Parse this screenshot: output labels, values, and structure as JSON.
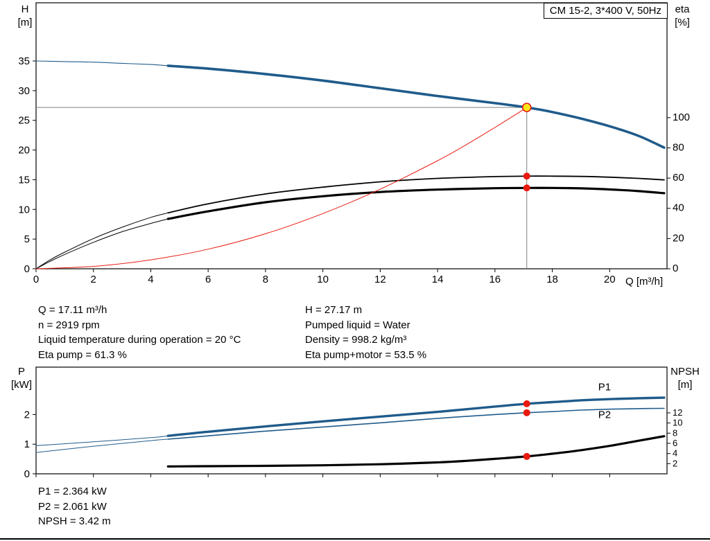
{
  "title_box": "CM 15-2, 3*400 V, 50Hz",
  "axis_titles": {
    "top_left_1": "H",
    "top_left_2": "[m]",
    "top_right_1": "eta",
    "top_right_2": "[%]",
    "bottom_left_1": "P",
    "bottom_left_2": "[kW]",
    "bottom_right_1": "NPSH",
    "bottom_right_2": "[m]"
  },
  "info_panel": {
    "left": [
      "Q = 17.11 m³/h",
      "n = 2919 rpm",
      "Liquid temperature during operation = 20 °C",
      "Eta pump = 61.3 %"
    ],
    "right": [
      "H = 27.17 m",
      "Pumped liquid = Water",
      "Density = 998.2 kg/m³",
      "Eta pump+motor = 53.5 %"
    ]
  },
  "footer_panel": [
    "P1 = 2.364 kW",
    "P2 = 2.061 kW",
    "NPSH = 3.42 m"
  ],
  "colors": {
    "blue": "#1f5b8b",
    "black": "#000000",
    "red": "#e8190f",
    "gray": "#7f7f7f",
    "yellow": "#ffe619"
  },
  "chart_data": [
    {
      "type": "line",
      "title": "CM 15-2, 3*400 V, 50Hz",
      "xlabel": "Q [m³/h]",
      "ylabel_left": "H [m]",
      "ylabel_right": "eta [%]",
      "xlim": [
        0,
        22
      ],
      "ylim_left": [
        0,
        44.8
      ],
      "ylim_right": [
        0,
        176
      ],
      "grid": false,
      "legend": false,
      "x_ticks": [
        0,
        2,
        4,
        6,
        8,
        10,
        12,
        14,
        16,
        18,
        20
      ],
      "y_ticks_left": [
        0,
        5,
        10,
        15,
        20,
        25,
        30,
        35
      ],
      "y_ticks_right": [
        0,
        20,
        40,
        60,
        80,
        100
      ],
      "series": [
        {
          "name": "pump-curve-lead-in",
          "axis": "left",
          "color": "blue",
          "width": 1.1,
          "points": [
            [
              0,
              35.0
            ],
            [
              1,
              34.9
            ],
            [
              2,
              34.8
            ],
            [
              3,
              34.6
            ],
            [
              4,
              34.4
            ],
            [
              4.6,
              34.2
            ]
          ]
        },
        {
          "name": "pump-curve",
          "axis": "left",
          "color": "blue",
          "width": 3.6,
          "points": [
            [
              4.6,
              34.2
            ],
            [
              6,
              33.7
            ],
            [
              8,
              32.8
            ],
            [
              10,
              31.7
            ],
            [
              12,
              30.4
            ],
            [
              14,
              29.1
            ],
            [
              16,
              27.9
            ],
            [
              17.11,
              27.17
            ],
            [
              18,
              26.4
            ],
            [
              19,
              25.3
            ],
            [
              20,
              24.0
            ],
            [
              21,
              22.4
            ],
            [
              21.9,
              20.4
            ]
          ]
        },
        {
          "name": "eta-pump-lead-in",
          "axis": "right",
          "color": "black",
          "width": 1.0,
          "points": [
            [
              0,
              0
            ],
            [
              0.5,
              6
            ],
            [
              1,
              11
            ],
            [
              2,
              20
            ],
            [
              3,
              27.5
            ],
            [
              4,
              34
            ],
            [
              4.6,
              37
            ]
          ]
        },
        {
          "name": "eta-pump-curve",
          "axis": "right",
          "color": "black",
          "width": 1.8,
          "points": [
            [
              4.6,
              37
            ],
            [
              6,
              43
            ],
            [
              8,
              49.5
            ],
            [
              10,
              54
            ],
            [
              12,
              57.5
            ],
            [
              14,
              59.8
            ],
            [
              16,
              61.0
            ],
            [
              17.11,
              61.3
            ],
            [
              18,
              61.3
            ],
            [
              19,
              61.1
            ],
            [
              20,
              60.6
            ],
            [
              21,
              59.8
            ],
            [
              21.9,
              58.8
            ]
          ]
        },
        {
          "name": "eta-pump-motor-lead-in",
          "axis": "right",
          "color": "black",
          "width": 1.0,
          "points": [
            [
              0,
              0
            ],
            [
              0.5,
              5
            ],
            [
              1,
              9.5
            ],
            [
              2,
              17.5
            ],
            [
              3,
              24.5
            ],
            [
              4,
              30
            ],
            [
              4.6,
              33
            ]
          ]
        },
        {
          "name": "eta-pump-motor-curve",
          "axis": "right",
          "color": "black",
          "width": 3.2,
          "points": [
            [
              4.6,
              33
            ],
            [
              6,
              38
            ],
            [
              8,
              44
            ],
            [
              10,
              48
            ],
            [
              12,
              50.8
            ],
            [
              14,
              52.4
            ],
            [
              16,
              53.3
            ],
            [
              17.11,
              53.5
            ],
            [
              18,
              53.5
            ],
            [
              19,
              53.2
            ],
            [
              20,
              52.5
            ],
            [
              21,
              51.4
            ],
            [
              21.9,
              50.0
            ]
          ]
        },
        {
          "name": "system-curve",
          "axis": "left",
          "color": "red",
          "width": 1.0,
          "points": [
            [
              0,
              0
            ],
            [
              2,
              0.4
            ],
            [
              4,
              1.5
            ],
            [
              6,
              3.3
            ],
            [
              8,
              5.9
            ],
            [
              10,
              9.3
            ],
            [
              12,
              13.4
            ],
            [
              14,
              18.2
            ],
            [
              15,
              20.9
            ],
            [
              16,
              23.8
            ],
            [
              16.6,
              25.6
            ],
            [
              17.11,
              27.17
            ]
          ]
        }
      ],
      "guides": [
        {
          "name": "duty-vline",
          "type": "v",
          "x": 17.11,
          "y_from": 0,
          "y_to": 27.17,
          "axis": "left",
          "color": "gray"
        },
        {
          "name": "duty-hline",
          "type": "h",
          "y": 27.17,
          "x_from": 0,
          "x_to": 17.11,
          "axis": "left",
          "color": "gray"
        }
      ],
      "markers": [
        {
          "name": "duty-point",
          "x": 17.11,
          "y": 27.17,
          "axis": "left",
          "fill": "yellow",
          "stroke": "red",
          "r": 6
        },
        {
          "name": "eta-pump-duty-point",
          "x": 17.11,
          "y": 61.3,
          "axis": "right",
          "fill": "red",
          "r": 5
        },
        {
          "name": "eta-pump-motor-duty-point",
          "x": 17.11,
          "y": 53.5,
          "axis": "right",
          "fill": "red",
          "r": 5
        }
      ],
      "duty_point": {
        "Q": 17.11,
        "H": 27.17,
        "eta_pump": 61.3,
        "eta_pump_motor": 53.5
      }
    },
    {
      "type": "line",
      "title": "",
      "xlabel": "",
      "ylabel_left": "P [kW]",
      "ylabel_right": "NPSH [m]",
      "xlim": [
        0,
        22
      ],
      "ylim_left": [
        0,
        3.6
      ],
      "ylim_right": [
        0,
        21
      ],
      "grid": false,
      "legend": false,
      "x_ticks": [
        0,
        2,
        4,
        6,
        8,
        10,
        12,
        14,
        16,
        18,
        20
      ],
      "y_ticks_left": [
        0,
        1,
        2
      ],
      "y_ticks_right": [
        2,
        4,
        6,
        8,
        10,
        12
      ],
      "series": [
        {
          "name": "p1-curve-lead-in",
          "axis": "left",
          "color": "blue",
          "width": 1.0,
          "points": [
            [
              0,
              0.95
            ],
            [
              2,
              1.08
            ],
            [
              4,
              1.22
            ],
            [
              4.6,
              1.28
            ]
          ]
        },
        {
          "name": "p1-curve",
          "axis": "left",
          "color": "blue",
          "width": 3.4,
          "points": [
            [
              4.6,
              1.28
            ],
            [
              6,
              1.42
            ],
            [
              8,
              1.6
            ],
            [
              10,
              1.77
            ],
            [
              12,
              1.93
            ],
            [
              14,
              2.09
            ],
            [
              16,
              2.27
            ],
            [
              17.11,
              2.364
            ],
            [
              18,
              2.42
            ],
            [
              19,
              2.48
            ],
            [
              20,
              2.52
            ],
            [
              21,
              2.55
            ],
            [
              21.9,
              2.57
            ]
          ]
        },
        {
          "name": "p2-curve-lead-in",
          "axis": "left",
          "color": "blue",
          "width": 1.0,
          "points": [
            [
              0,
              0.72
            ],
            [
              2,
              0.93
            ],
            [
              4,
              1.12
            ],
            [
              4.6,
              1.17
            ]
          ]
        },
        {
          "name": "p2-curve",
          "axis": "left",
          "color": "blue",
          "width": 1.6,
          "points": [
            [
              4.6,
              1.17
            ],
            [
              6,
              1.28
            ],
            [
              8,
              1.44
            ],
            [
              10,
              1.58
            ],
            [
              12,
              1.72
            ],
            [
              14,
              1.87
            ],
            [
              16,
              2.0
            ],
            [
              17.11,
              2.061
            ],
            [
              18,
              2.1
            ],
            [
              19,
              2.15
            ],
            [
              20,
              2.18
            ],
            [
              21,
              2.2
            ],
            [
              21.9,
              2.21
            ]
          ]
        },
        {
          "name": "npsh-curve",
          "axis": "right",
          "color": "black",
          "width": 3.2,
          "points": [
            [
              4.6,
              1.45
            ],
            [
              6,
              1.5
            ],
            [
              8,
              1.57
            ],
            [
              10,
              1.68
            ],
            [
              12,
              1.88
            ],
            [
              14,
              2.25
            ],
            [
              15,
              2.55
            ],
            [
              16,
              2.95
            ],
            [
              17.11,
              3.42
            ],
            [
              18,
              3.95
            ],
            [
              19,
              4.65
            ],
            [
              20,
              5.5
            ],
            [
              21,
              6.5
            ],
            [
              21.9,
              7.4
            ]
          ]
        }
      ],
      "guides": [],
      "markers": [
        {
          "name": "p1-duty-point",
          "x": 17.11,
          "y": 2.364,
          "axis": "left",
          "fill": "red",
          "r": 5
        },
        {
          "name": "p2-duty-point",
          "x": 17.11,
          "y": 2.061,
          "axis": "left",
          "fill": "red",
          "r": 5
        },
        {
          "name": "npsh-duty-point",
          "x": 17.11,
          "y": 3.42,
          "axis": "right",
          "fill": "red",
          "r": 5
        }
      ],
      "annotations": [
        {
          "name": "p1-label",
          "text": "P1",
          "x": 19.6,
          "y": 2.82,
          "axis": "left",
          "color": "blue"
        },
        {
          "name": "p2-label",
          "text": "P2",
          "x": 19.6,
          "y": 1.88,
          "axis": "left",
          "color": "blue"
        }
      ],
      "duty_point": {
        "Q": 17.11,
        "P1_kW": 2.364,
        "P2_kW": 2.061,
        "NPSH_m": 3.42
      }
    }
  ]
}
